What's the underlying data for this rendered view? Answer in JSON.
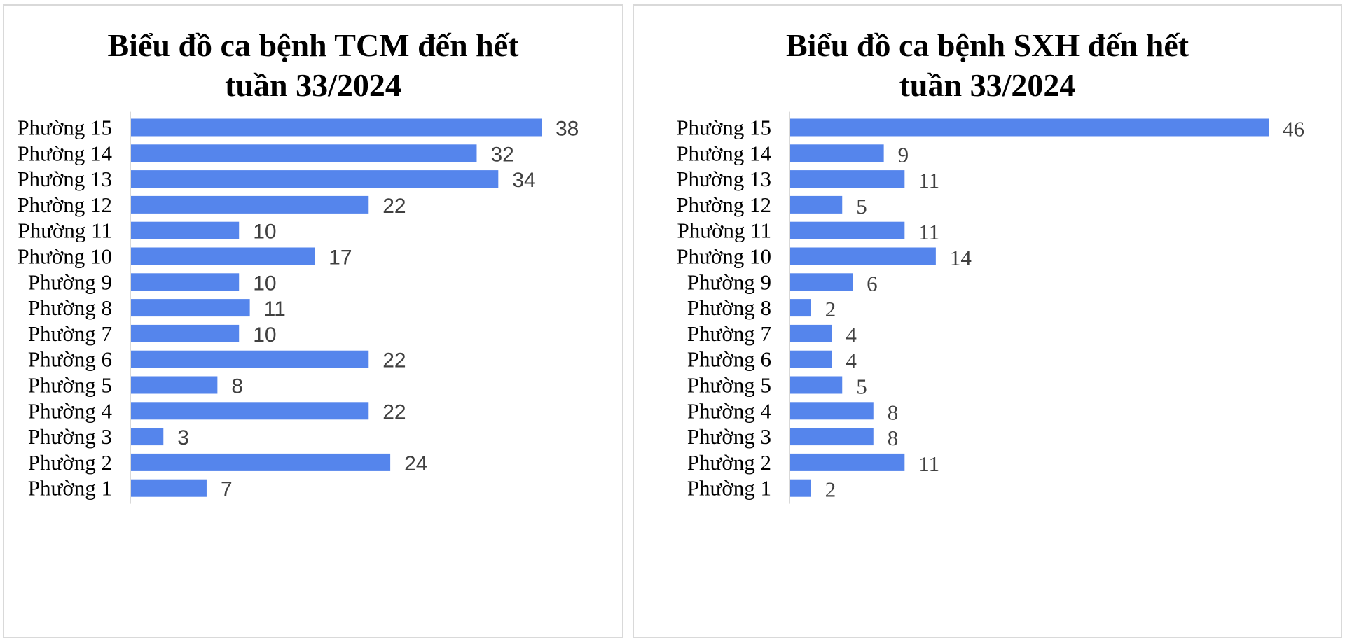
{
  "colors": {
    "bar": "#5585EC",
    "axis": "#d9d9d9",
    "value_label": "#404040",
    "border": "#d9d9d9"
  },
  "chart_data": [
    {
      "type": "bar",
      "orientation": "horizontal",
      "title_line1": "Biểu đồ ca bệnh TCM đến hết",
      "title_line2": "tuần 33/2024",
      "categories": [
        "Phường 15",
        "Phường 14",
        "Phường 13",
        "Phường 12",
        "Phường 11",
        "Phường 10",
        "Phường 9",
        "Phường 8",
        "Phường 7",
        "Phường 6",
        "Phường 5",
        "Phường 4",
        "Phường 3",
        "Phường 2",
        "Phường 1"
      ],
      "values": [
        38,
        32,
        34,
        22,
        10,
        17,
        10,
        11,
        10,
        22,
        8,
        22,
        3,
        24,
        7
      ],
      "value_labels": [
        "38",
        "32",
        "34",
        "22",
        "10",
        "17",
        "10",
        "11",
        "10",
        "22",
        "8",
        "22",
        "3",
        "24",
        "7"
      ],
      "xlim": [
        0,
        38
      ],
      "grid": false,
      "legend": "none"
    },
    {
      "type": "bar",
      "orientation": "horizontal",
      "title_line1": "Biểu đồ ca bệnh SXH đến hết",
      "title_line2": "tuần 33/2024",
      "categories": [
        "Phường 15",
        "Phường 14",
        "Phường 13",
        "Phường 12",
        "Phường 11",
        "Phường 10",
        "Phường 9",
        "Phường 8",
        "Phường 7",
        "Phường 6",
        "Phường 5",
        "Phường 4",
        "Phường 3",
        "Phường 2",
        "Phường 1"
      ],
      "values": [
        46,
        9,
        11,
        5,
        11,
        14,
        6,
        2,
        4,
        4,
        5,
        8,
        8,
        11,
        2
      ],
      "value_labels": [
        "46",
        "9",
        "11",
        "5",
        "11",
        "14",
        "6",
        "2",
        "4",
        "4",
        "5",
        "8",
        "8",
        "11",
        "2"
      ],
      "xlim": [
        0,
        46
      ],
      "grid": false,
      "legend": "none"
    }
  ]
}
